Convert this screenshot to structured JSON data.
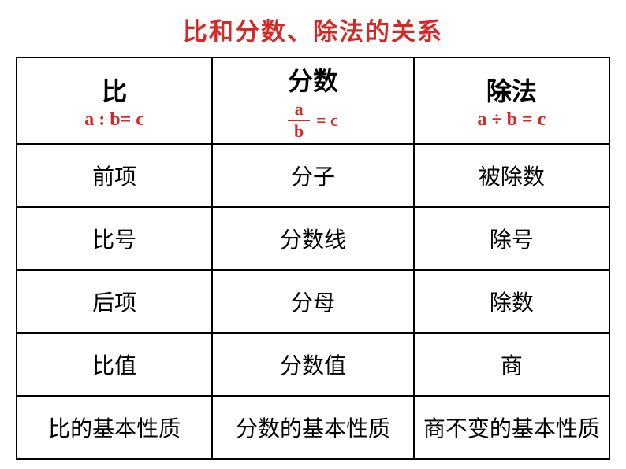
{
  "title": "比和分数、除法的关系",
  "colors": {
    "accent": "#d82826",
    "text": "#000000",
    "border": "#000000",
    "background": "#ffffff"
  },
  "typography": {
    "title_fontsize": 31,
    "header_main_fontsize": 32,
    "header_sub_fontsize": 24,
    "cell_fontsize": 28,
    "font_family": "KaiTi"
  },
  "table": {
    "columns": [
      {
        "main": "比",
        "sub": "a : b= c"
      },
      {
        "main": "分数",
        "sub_fraction": {
          "num": "a",
          "den": "b",
          "eq": "=  c"
        }
      },
      {
        "main": "除法",
        "sub": "a ÷ b = c"
      }
    ],
    "rows": [
      [
        "前项",
        "分子",
        "被除数"
      ],
      [
        "比号",
        "分数线",
        "除号"
      ],
      [
        "后项",
        "分母",
        "除数"
      ],
      [
        "比值",
        "分数值",
        "商"
      ],
      [
        "比的基本性质",
        "分数的基本性质",
        "商不变的基本性质"
      ]
    ]
  }
}
